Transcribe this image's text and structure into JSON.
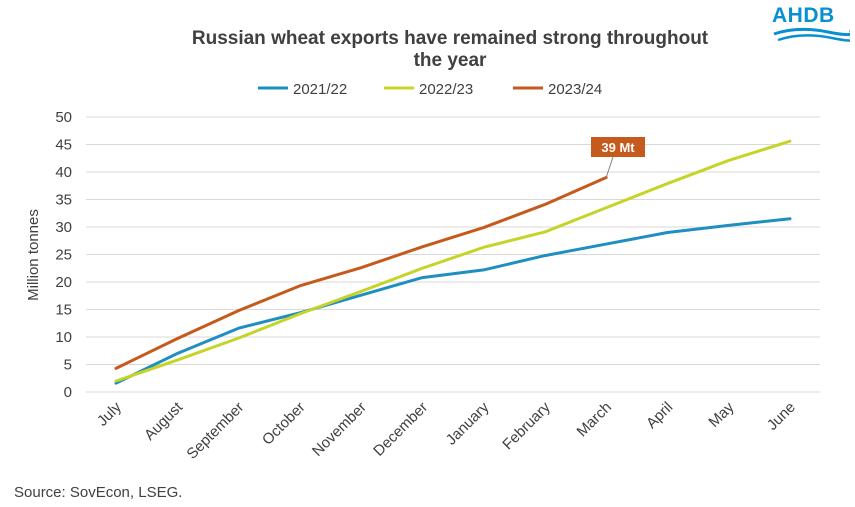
{
  "chart_data": {
    "type": "line",
    "title": "Russian wheat exports have remained strong throughout the year",
    "title_lines": [
      "Russian wheat exports have remained strong throughout",
      "the year"
    ],
    "xlabel": "",
    "ylabel": "Million tonnes",
    "ylim": [
      0,
      50
    ],
    "yticks": [
      0,
      5,
      10,
      15,
      20,
      25,
      30,
      35,
      40,
      45,
      50
    ],
    "grid": true,
    "legend_position": "top",
    "categories": [
      "July",
      "August",
      "September",
      "October",
      "November",
      "December",
      "January",
      "February",
      "March",
      "April",
      "May",
      "June"
    ],
    "series": [
      {
        "name": "2021/22",
        "color": "#1f8fc2",
        "values": [
          1.6,
          7.0,
          11.6,
          14.4,
          17.6,
          20.8,
          22.2,
          24.8,
          26.9,
          29.0,
          30.3,
          31.5
        ]
      },
      {
        "name": "2022/23",
        "color": "#c6d42a",
        "values": [
          2.0,
          5.8,
          9.8,
          14.2,
          18.3,
          22.5,
          26.3,
          29.1,
          33.5,
          37.9,
          42.1,
          45.6
        ]
      },
      {
        "name": "2023/24",
        "color": "#c55a1c",
        "values": [
          4.3,
          9.7,
          14.8,
          19.3,
          22.6,
          26.4,
          29.9,
          34.1,
          39.0,
          null,
          null,
          null
        ]
      }
    ],
    "annotation": {
      "text": "39 Mt",
      "series": "2023/24",
      "category": "March",
      "color": "#c55a1c"
    },
    "source": "Source: SovEcon, LSEG."
  },
  "logo": {
    "text": "AHDB",
    "color": "#0a8fd1"
  }
}
